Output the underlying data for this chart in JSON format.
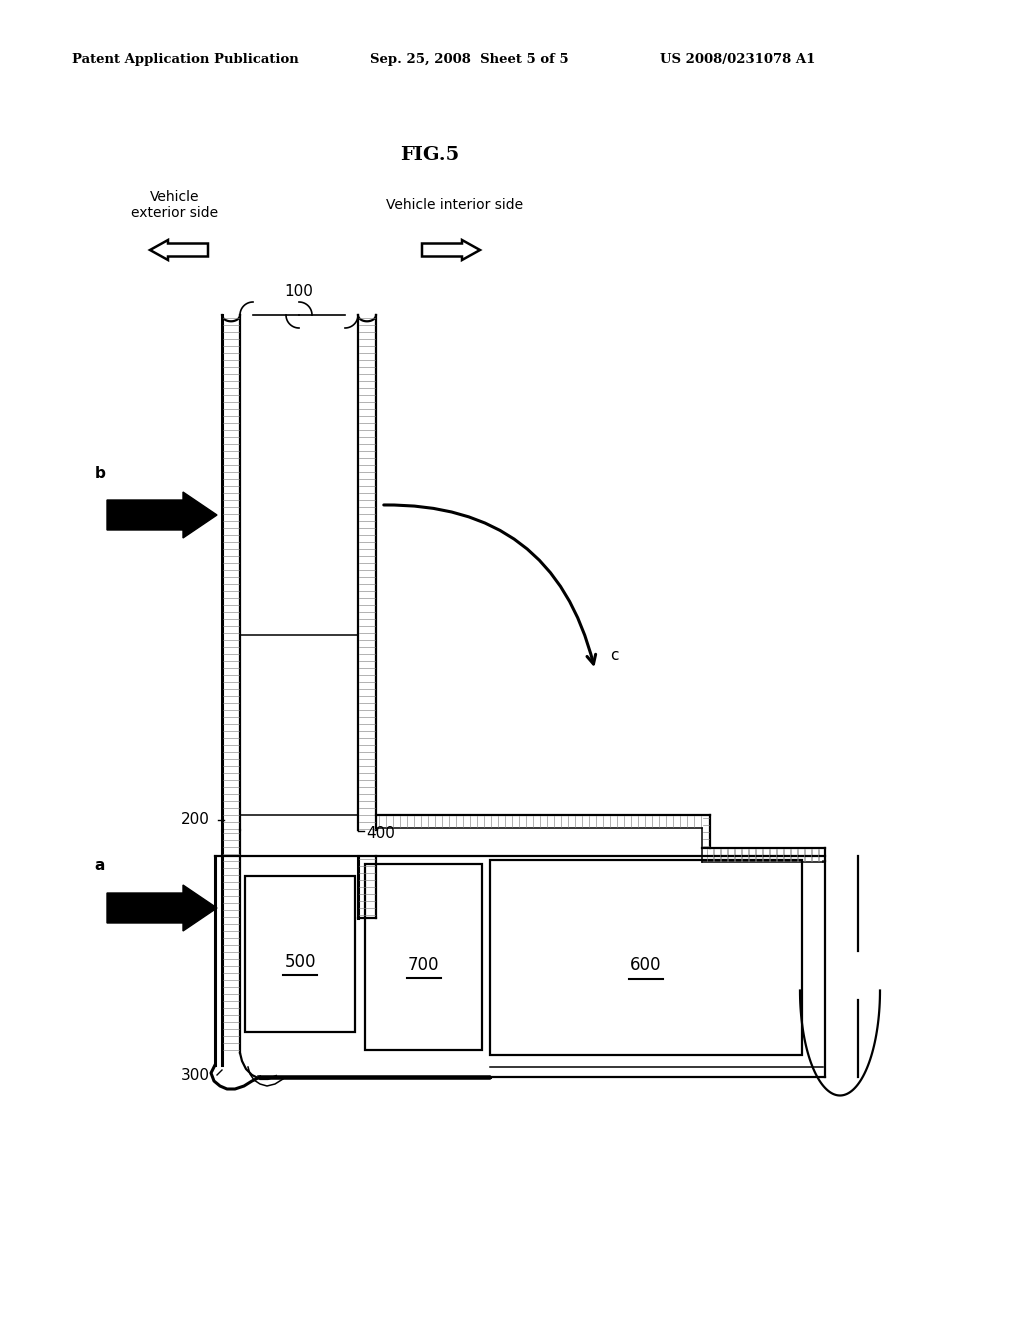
{
  "header_left": "Patent Application Publication",
  "header_mid": "Sep. 25, 2008  Sheet 5 of 5",
  "header_right": "US 2008/0231078 A1",
  "fig_label": "FIG.5",
  "label_exterior": "Vehicle\nexterior side",
  "label_interior": "Vehicle interior side",
  "ref_100": "100",
  "ref_200": "200",
  "ref_300": "300",
  "ref_400": "400",
  "ref_500": "500",
  "ref_600": "600",
  "ref_700": "700",
  "ref_a": "a",
  "ref_b": "b",
  "ref_c": "c",
  "bg_color": "#ffffff",
  "lc": "#000000"
}
